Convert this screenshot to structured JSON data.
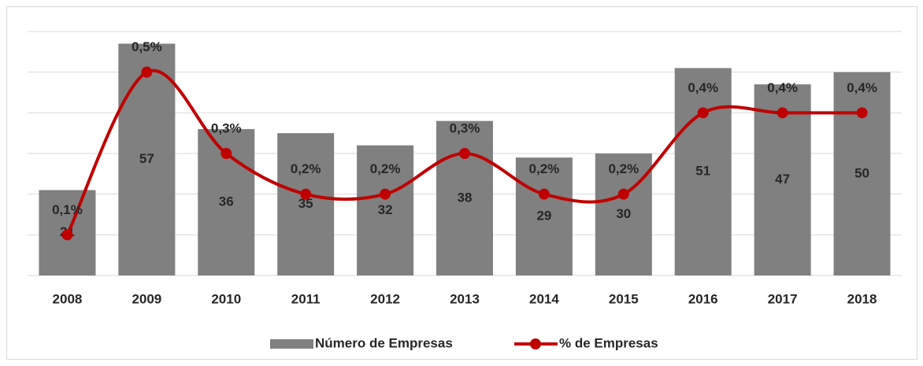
{
  "chart_data": {
    "type": "bar_line",
    "categories": [
      "2008",
      "2009",
      "2010",
      "2011",
      "2012",
      "2013",
      "2014",
      "2015",
      "2016",
      "2017",
      "2018"
    ],
    "series": [
      {
        "name": "Número de Empresas",
        "type": "bar",
        "color": "#808080",
        "values": [
          21,
          57,
          36,
          35,
          32,
          38,
          29,
          30,
          51,
          47,
          50
        ]
      },
      {
        "name": "% de Empresas",
        "type": "line",
        "axis": "y2",
        "color": "#c00000",
        "values": [
          0.1,
          0.5,
          0.3,
          0.2,
          0.2,
          0.3,
          0.2,
          0.2,
          0.4,
          0.4,
          0.4
        ],
        "value_labels": [
          "0,1%",
          "0,5%",
          "0,3%",
          "0,2%",
          "0,2%",
          "0,3%",
          "0,2%",
          "0,2%",
          "0,4%",
          "0,4%",
          "0,4%"
        ]
      }
    ],
    "ylim": [
      0,
      60
    ],
    "yticks": [
      0,
      10,
      20,
      30,
      40,
      50,
      60
    ],
    "y2lim": [
      0,
      0.6
    ],
    "grid": true,
    "legend": "bottom"
  }
}
